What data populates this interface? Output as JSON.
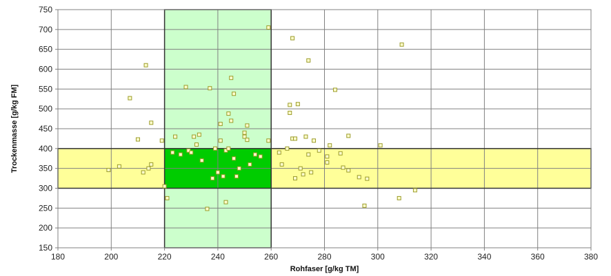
{
  "chart_data": {
    "type": "scatter",
    "title": "",
    "xlabel": "Rohfaser [g/kg TM]",
    "ylabel": "Trockenmasse [g/kg FM]",
    "xlim": [
      180,
      380
    ],
    "ylim": [
      150,
      750
    ],
    "x_ticks": [
      180,
      200,
      220,
      240,
      260,
      280,
      300,
      320,
      340,
      360,
      380
    ],
    "y_ticks": [
      150,
      200,
      250,
      300,
      350,
      400,
      450,
      500,
      550,
      600,
      650,
      700,
      750
    ],
    "grid": true,
    "legend": "none",
    "colors": {
      "marker_stroke": "#9a9a2a",
      "marker_fill": "#ffffcc",
      "light_green": "#ccffcc",
      "dark_green": "#00cc00",
      "yellow": "#ffff99",
      "gridline": "#808080",
      "frame": "#808080"
    },
    "shaded_ranges": {
      "x_range": [
        220,
        260
      ],
      "y_range": [
        300,
        400
      ]
    },
    "points": [
      [
        199,
        346
      ],
      [
        203,
        355
      ],
      [
        210,
        423
      ],
      [
        212,
        340
      ],
      [
        213,
        610
      ],
      [
        214,
        350
      ],
      [
        215,
        465
      ],
      [
        215,
        360
      ],
      [
        207,
        527
      ],
      [
        219,
        420
      ],
      [
        220,
        305
      ],
      [
        221,
        275
      ],
      [
        223,
        390
      ],
      [
        224,
        430
      ],
      [
        226,
        385
      ],
      [
        228,
        555
      ],
      [
        229,
        395
      ],
      [
        230,
        390
      ],
      [
        231,
        430
      ],
      [
        232,
        410
      ],
      [
        233,
        435
      ],
      [
        234,
        370
      ],
      [
        236,
        248
      ],
      [
        237,
        552
      ],
      [
        238,
        325
      ],
      [
        239,
        400
      ],
      [
        240,
        340
      ],
      [
        241,
        462
      ],
      [
        241,
        420
      ],
      [
        242,
        330
      ],
      [
        243,
        265
      ],
      [
        243,
        395
      ],
      [
        244,
        488
      ],
      [
        244,
        400
      ],
      [
        245,
        578
      ],
      [
        245,
        470
      ],
      [
        246,
        538
      ],
      [
        246,
        375
      ],
      [
        247,
        330
      ],
      [
        248,
        350
      ],
      [
        250,
        440
      ],
      [
        250,
        430
      ],
      [
        251,
        458
      ],
      [
        251,
        422
      ],
      [
        252,
        360
      ],
      [
        254,
        385
      ],
      [
        256,
        380
      ],
      [
        259,
        705
      ],
      [
        259,
        420
      ],
      [
        263,
        390
      ],
      [
        264,
        360
      ],
      [
        266,
        400
      ],
      [
        267,
        490
      ],
      [
        267,
        510
      ],
      [
        268,
        425
      ],
      [
        268,
        678
      ],
      [
        269,
        425
      ],
      [
        269,
        325
      ],
      [
        270,
        512
      ],
      [
        271,
        350
      ],
      [
        272,
        335
      ],
      [
        273,
        430
      ],
      [
        274,
        385
      ],
      [
        274,
        622
      ],
      [
        275,
        340
      ],
      [
        276,
        420
      ],
      [
        278,
        395
      ],
      [
        281,
        380
      ],
      [
        281,
        365
      ],
      [
        282,
        408
      ],
      [
        284,
        548
      ],
      [
        286,
        388
      ],
      [
        287,
        352
      ],
      [
        289,
        345
      ],
      [
        289,
        432
      ],
      [
        293,
        328
      ],
      [
        295,
        256
      ],
      [
        296,
        324
      ],
      [
        301,
        408
      ],
      [
        308,
        275
      ],
      [
        309,
        662
      ],
      [
        314,
        295
      ]
    ]
  }
}
